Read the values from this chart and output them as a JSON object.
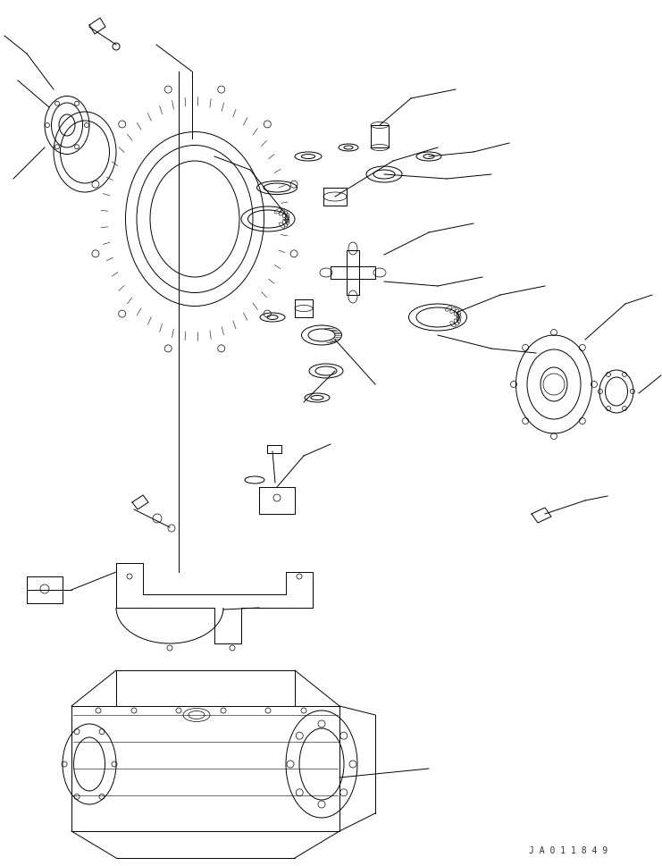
{
  "bg_color": "#ffffff",
  "line_color": "#000000",
  "fig_width": 7.41,
  "fig_height": 9.69,
  "dpi": 100,
  "watermark": "J A 0 1 1 8 4 9",
  "title": ""
}
